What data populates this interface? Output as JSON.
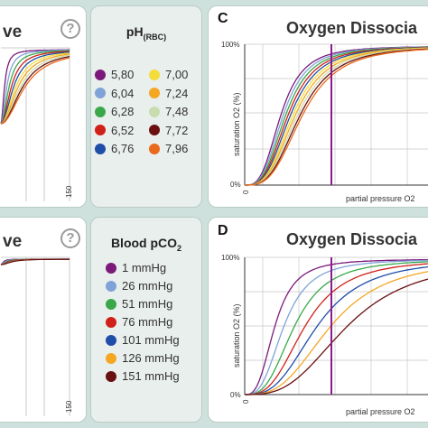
{
  "panel_a": {
    "title": "ve",
    "help": "?",
    "x_max_label": "150"
  },
  "panel_b": {
    "title": "ve",
    "help": "?",
    "x_max_label": "150"
  },
  "ph_legend": {
    "title": "pH",
    "subscript": "(RBC)",
    "left": [
      {
        "label": "5,80",
        "color": "#7b1a7b"
      },
      {
        "label": "6,04",
        "color": "#7fa3d8"
      },
      {
        "label": "6,28",
        "color": "#3aa84a"
      },
      {
        "label": "6,52",
        "color": "#d0201a"
      },
      {
        "label": "6,76",
        "color": "#1f4ea8"
      }
    ],
    "right": [
      {
        "label": "7,00",
        "color": "#f4dc3a"
      },
      {
        "label": "7,24",
        "color": "#f5a623"
      },
      {
        "label": "7,48",
        "color": "#c9dcaf"
      },
      {
        "label": "7,72",
        "color": "#6a1010"
      },
      {
        "label": "7,96",
        "color": "#ea6a1c"
      }
    ]
  },
  "pco2_legend": {
    "title": "Blood pCO",
    "subscript": "2",
    "items": [
      {
        "label": "1 mmHg",
        "color": "#7b1a7b"
      },
      {
        "label": "26 mmHg",
        "color": "#7fa3d8"
      },
      {
        "label": "51 mmHg",
        "color": "#3aa84a"
      },
      {
        "label": "76 mmHg",
        "color": "#d0201a"
      },
      {
        "label": "101 mmHg",
        "color": "#1f4ea8"
      },
      {
        "label": "126 mmHg",
        "color": "#f5a623"
      },
      {
        "label": "151 mmHg",
        "color": "#6a1010"
      }
    ]
  },
  "panel_c": {
    "letter": "C",
    "title": "Oxygen Dissocia",
    "y_top": "100%",
    "y_bottom": "0%",
    "x_zero": "0",
    "y_axis": "saturation O2 (%)",
    "x_axis": "partial pressure O2",
    "marker_color": "#8b1a8b",
    "curve_colors": [
      "#7b1a7b",
      "#7fa3d8",
      "#3aa84a",
      "#d0201a",
      "#1f4ea8",
      "#f4dc3a",
      "#f5a623",
      "#c9dcaf",
      "#6a1010",
      "#ea6a1c"
    ]
  },
  "panel_d": {
    "letter": "D",
    "title": "Oxygen Dissocia",
    "y_top": "100%",
    "y_bottom": "0%",
    "x_zero": "0",
    "y_axis": "saturation O2 (%)",
    "x_axis": "partial pressure O2",
    "marker_color": "#8b1a8b",
    "curve_colors": [
      "#7b1a7b",
      "#7fa3d8",
      "#3aa84a",
      "#d0201a",
      "#1f4ea8",
      "#f5a623",
      "#6a1010"
    ]
  }
}
